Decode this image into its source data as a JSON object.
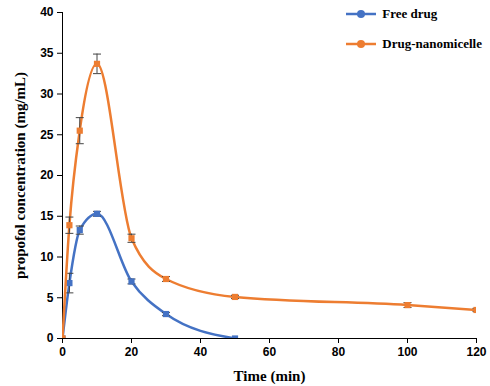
{
  "chart_data": {
    "type": "line",
    "x_label": "Time (min)",
    "y_label": "propofol concentration (mg/mL)",
    "xlim": [
      0,
      120
    ],
    "xticks": [
      0,
      20,
      40,
      60,
      80,
      100,
      120
    ],
    "ylim": [
      0,
      40
    ],
    "yticks": [
      0,
      5,
      10,
      15,
      20,
      25,
      30,
      35,
      40
    ],
    "grid": false,
    "legend": "top-right",
    "series": [
      {
        "name": "Free drug",
        "color": "#4472c4",
        "marker": "square",
        "line_style": "solid",
        "x": [
          0,
          2,
          5,
          10,
          20,
          30,
          50
        ],
        "values": [
          0,
          6.8,
          13.3,
          15.3,
          7.0,
          3.0,
          0
        ],
        "errors": [
          0,
          1.2,
          0.5,
          0.3,
          0.3,
          0.2,
          0
        ]
      },
      {
        "name": "Drug-nanomicelle",
        "color": "#ed7d31",
        "marker": "square",
        "line_style": "solid",
        "x": [
          0,
          2,
          5,
          10,
          20,
          30,
          50,
          100,
          120
        ],
        "values": [
          0,
          13.9,
          25.5,
          33.7,
          12.3,
          7.3,
          5.1,
          4.1,
          3.5
        ],
        "errors": [
          0,
          1.0,
          1.6,
          1.2,
          0.5,
          0.3,
          0.2,
          0.3,
          0.2
        ]
      }
    ]
  }
}
